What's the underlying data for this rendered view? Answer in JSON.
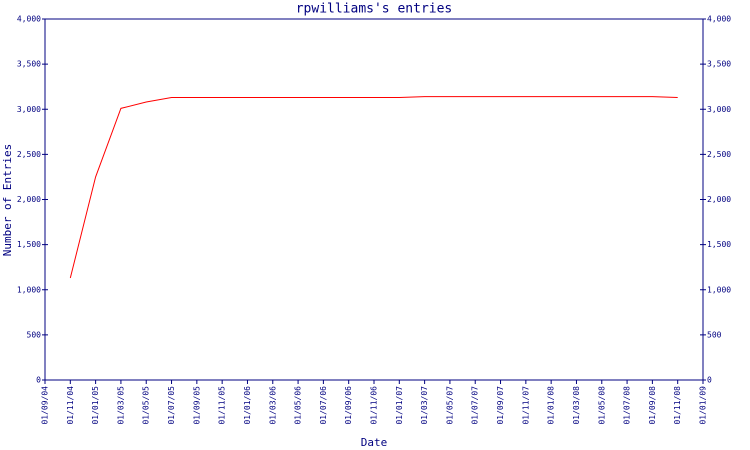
{
  "chart_data": {
    "type": "line",
    "title": "rpwilliams's entries",
    "x_label": "Date",
    "y_label": "Number of Entries",
    "categories": [
      "01/09/04",
      "01/11/04",
      "01/01/05",
      "01/03/05",
      "01/05/05",
      "01/07/05",
      "01/09/05",
      "01/11/05",
      "01/01/06",
      "01/03/06",
      "01/05/06",
      "01/07/06",
      "01/09/06",
      "01/11/06",
      "01/01/07",
      "01/03/07",
      "01/05/07",
      "01/07/07",
      "01/09/07",
      "01/11/07",
      "01/01/08",
      "01/03/08",
      "01/05/08",
      "01/07/08",
      "01/09/08",
      "01/11/08",
      "01/01/09"
    ],
    "series": [
      {
        "name": "Entries",
        "color": "#ff0000",
        "values": [
          null,
          1130,
          2250,
          3010,
          3080,
          3130,
          3130,
          3130,
          3130,
          3130,
          3130,
          3130,
          3130,
          3130,
          3130,
          3140,
          3140,
          3140,
          3140,
          3140,
          3140,
          3140,
          3140,
          3140,
          3140,
          3130,
          null
        ]
      }
    ],
    "ylim": [
      0,
      4000
    ],
    "yticks": [
      0,
      500,
      {
        "value": 1000,
        "label": "1,000"
      },
      {
        "value": 1500,
        "label": "1,500"
      },
      {
        "value": 2000,
        "label": "2,000"
      },
      {
        "value": 2500,
        "label": "2,500"
      },
      {
        "value": 3000,
        "label": "3,000"
      },
      {
        "value": 3500,
        "label": "3,500"
      },
      {
        "value": 4000,
        "label": "4,000"
      }
    ],
    "y2lim": [
      0,
      4000
    ],
    "y2ticks": [
      0,
      500,
      {
        "value": 1000,
        "label": "1,000"
      },
      {
        "value": 1500,
        "label": "1,500"
      },
      {
        "value": 2000,
        "label": "2,000"
      },
      {
        "value": 2500,
        "label": "2,500"
      },
      {
        "value": 3000,
        "label": "3,000"
      },
      {
        "value": 3500,
        "label": "3,500"
      },
      {
        "value": 4000,
        "label": "4,000"
      }
    ],
    "axis_color": "#000080",
    "grid": false
  }
}
